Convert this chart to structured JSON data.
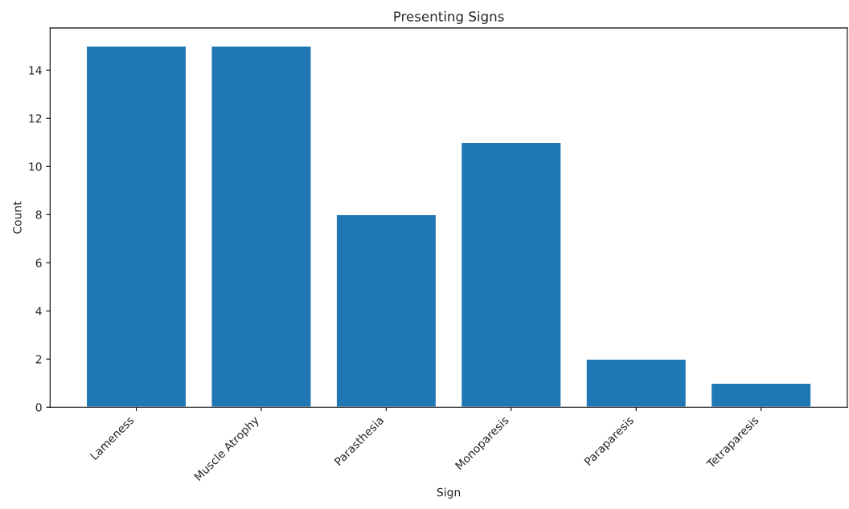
{
  "chart_data": {
    "type": "bar",
    "title": "Presenting Signs",
    "xlabel": "Sign",
    "ylabel": "Count",
    "categories": [
      "Lameness",
      "Muscle Atrophy",
      "Parasthesia",
      "Monoparesis",
      "Paraparesis",
      "Tetraparesis"
    ],
    "values": [
      15,
      15,
      8,
      11,
      2,
      1
    ],
    "color": "#1f77b4",
    "ylim": [
      0,
      15.75
    ],
    "yticks": [
      0,
      2,
      4,
      6,
      8,
      10,
      12,
      14
    ],
    "grid": false,
    "legend": false
  }
}
